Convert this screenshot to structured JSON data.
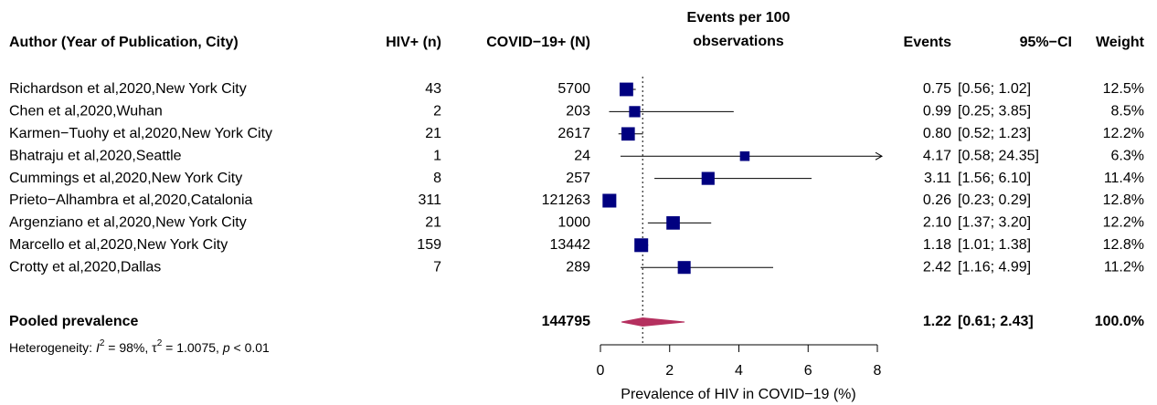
{
  "chart_data": {
    "type": "forest",
    "headers": {
      "study": "Author (Year of Publication, City)",
      "hiv": "HIV+ (n)",
      "covid": "COVID−19+ (N)",
      "plot": [
        "Events per 100",
        "observations"
      ],
      "events": "Events",
      "ci": "95%−CI",
      "weight": "Weight"
    },
    "categories": [
      "Richardson et al,2020,New York City",
      "Chen et al,2020,Wuhan",
      "Karmen−Tuohy et al,2020,New York City",
      "Bhatraju et al,2020,Seattle",
      "Cummings et al,2020,New York City",
      "Prieto−Alhambra et al,2020,Catalonia",
      "Argenziano et al,2020,New York City",
      "Marcello et al,2020,New York City",
      "Crotty et al,2020,Dallas"
    ],
    "hiv": [
      43,
      2,
      21,
      1,
      8,
      311,
      21,
      159,
      7
    ],
    "covid": [
      5700,
      203,
      2617,
      24,
      257,
      121263,
      1000,
      13442,
      289
    ],
    "values": [
      0.75,
      0.99,
      0.8,
      4.17,
      3.11,
      0.26,
      2.1,
      1.18,
      2.42
    ],
    "value_labels": [
      "0.75",
      "0.99",
      "0.80",
      "4.17",
      "3.11",
      "0.26",
      "2.10",
      "1.18",
      "2.42"
    ],
    "ci_low": [
      0.56,
      0.25,
      0.52,
      0.58,
      1.56,
      0.23,
      1.37,
      1.01,
      1.16
    ],
    "ci_high": [
      1.02,
      3.85,
      1.23,
      24.35,
      6.1,
      0.29,
      3.2,
      1.38,
      4.99
    ],
    "ci_labels": [
      "[0.56; 1.02]",
      "[0.25; 3.85]",
      "[0.52; 1.23]",
      "[0.58; 24.35]",
      "[1.56; 6.10]",
      "[0.23; 0.29]",
      "[1.37; 3.20]",
      "[1.01; 1.38]",
      "[1.16; 4.99]"
    ],
    "weights": [
      12.5,
      8.5,
      12.2,
      6.3,
      11.4,
      12.8,
      12.2,
      12.8,
      11.2
    ],
    "weight_labels": [
      "12.5%",
      "8.5%",
      "12.2%",
      "6.3%",
      "11.4%",
      "12.8%",
      "12.2%",
      "12.8%",
      "11.2%"
    ],
    "color": "#000080",
    "pooled": {
      "name": "Pooled prevalence",
      "covid": 144795,
      "value": 1.22,
      "value_label": "1.22",
      "ci_low": 0.61,
      "ci_high": 2.43,
      "ci_label": "[0.61; 2.43]",
      "weight": 100,
      "weight_label": "100.0%",
      "color": "#b5305f"
    },
    "heterogeneity": [
      "Heterogeneity: ",
      "I",
      "2",
      " = 98%, ",
      "τ",
      "2",
      " = 1.0075, ",
      "p",
      " < 0.01"
    ],
    "xlabel": "Prevalence of HIV in COVID−19 (%)",
    "xlim": [
      0,
      8
    ],
    "xticks": [
      0,
      2,
      4,
      6,
      8
    ]
  }
}
